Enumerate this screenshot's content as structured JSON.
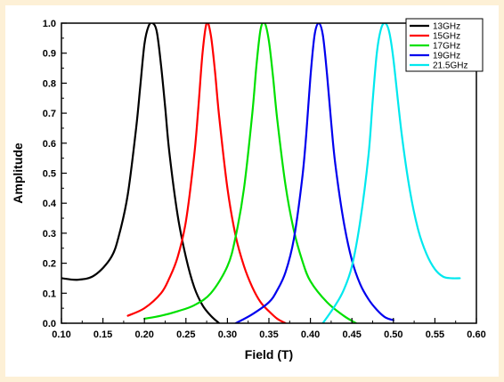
{
  "chart_data": {
    "type": "line",
    "xlabel": "Field (T)",
    "ylabel": "Amplitude",
    "xlim": [
      0.1,
      0.6
    ],
    "ylim": [
      0.0,
      1.0
    ],
    "x_ticks": [
      "0.10",
      "0.15",
      "0.20",
      "0.25",
      "0.30",
      "0.35",
      "0.40",
      "0.45",
      "0.50",
      "0.55",
      "0.60"
    ],
    "y_ticks": [
      "0.0",
      "0.1",
      "0.2",
      "0.3",
      "0.4",
      "0.5",
      "0.6",
      "0.7",
      "0.8",
      "0.9",
      "1.0"
    ],
    "grid": false,
    "legend_position": "top-right",
    "series": [
      {
        "name": "13GHz",
        "color": "#000000",
        "x": [
          0.1,
          0.12,
          0.14,
          0.16,
          0.17,
          0.18,
          0.19,
          0.195,
          0.2,
          0.205,
          0.21,
          0.215,
          0.22,
          0.225,
          0.23,
          0.24,
          0.25,
          0.26,
          0.27,
          0.28,
          0.29
        ],
        "y": [
          0.15,
          0.145,
          0.16,
          0.22,
          0.3,
          0.43,
          0.65,
          0.79,
          0.93,
          0.99,
          1.0,
          0.97,
          0.86,
          0.72,
          0.57,
          0.36,
          0.22,
          0.12,
          0.06,
          0.025,
          0.0
        ]
      },
      {
        "name": "15GHz",
        "color": "#ff0000",
        "x": [
          0.18,
          0.2,
          0.22,
          0.23,
          0.24,
          0.25,
          0.26,
          0.265,
          0.27,
          0.275,
          0.28,
          0.285,
          0.29,
          0.3,
          0.31,
          0.32,
          0.33,
          0.34,
          0.35,
          0.36,
          0.37
        ],
        "y": [
          0.025,
          0.05,
          0.1,
          0.15,
          0.22,
          0.34,
          0.56,
          0.72,
          0.9,
          1.0,
          0.96,
          0.84,
          0.69,
          0.45,
          0.29,
          0.19,
          0.12,
          0.07,
          0.04,
          0.015,
          0.0
        ]
      },
      {
        "name": "17GHz",
        "color": "#00e000",
        "x": [
          0.2,
          0.22,
          0.24,
          0.26,
          0.28,
          0.3,
          0.31,
          0.32,
          0.33,
          0.335,
          0.34,
          0.345,
          0.35,
          0.355,
          0.36,
          0.37,
          0.38,
          0.39,
          0.4,
          0.42,
          0.44,
          0.455
        ],
        "y": [
          0.015,
          0.025,
          0.04,
          0.06,
          0.1,
          0.19,
          0.29,
          0.45,
          0.7,
          0.86,
          0.98,
          1.0,
          0.94,
          0.82,
          0.68,
          0.46,
          0.31,
          0.21,
          0.14,
          0.07,
          0.025,
          0.0
        ]
      },
      {
        "name": "19GHz",
        "color": "#0000ee",
        "x": [
          0.31,
          0.33,
          0.35,
          0.36,
          0.37,
          0.38,
          0.39,
          0.395,
          0.4,
          0.405,
          0.41,
          0.415,
          0.42,
          0.425,
          0.43,
          0.44,
          0.45,
          0.46,
          0.47,
          0.48,
          0.49,
          0.5
        ],
        "y": [
          0.0,
          0.03,
          0.07,
          0.11,
          0.17,
          0.28,
          0.48,
          0.63,
          0.82,
          0.96,
          1.0,
          0.96,
          0.83,
          0.67,
          0.53,
          0.34,
          0.21,
          0.13,
          0.08,
          0.045,
          0.02,
          0.01
        ]
      },
      {
        "name": "21.5GHz",
        "color": "#00e8ee",
        "x": [
          0.415,
          0.43,
          0.44,
          0.45,
          0.46,
          0.47,
          0.475,
          0.48,
          0.485,
          0.49,
          0.495,
          0.5,
          0.51,
          0.52,
          0.53,
          0.54,
          0.55,
          0.56,
          0.57,
          0.58
        ],
        "y": [
          0.0,
          0.06,
          0.11,
          0.19,
          0.34,
          0.56,
          0.74,
          0.9,
          0.98,
          1.0,
          0.97,
          0.88,
          0.63,
          0.44,
          0.31,
          0.23,
          0.18,
          0.155,
          0.15,
          0.15
        ]
      }
    ]
  }
}
